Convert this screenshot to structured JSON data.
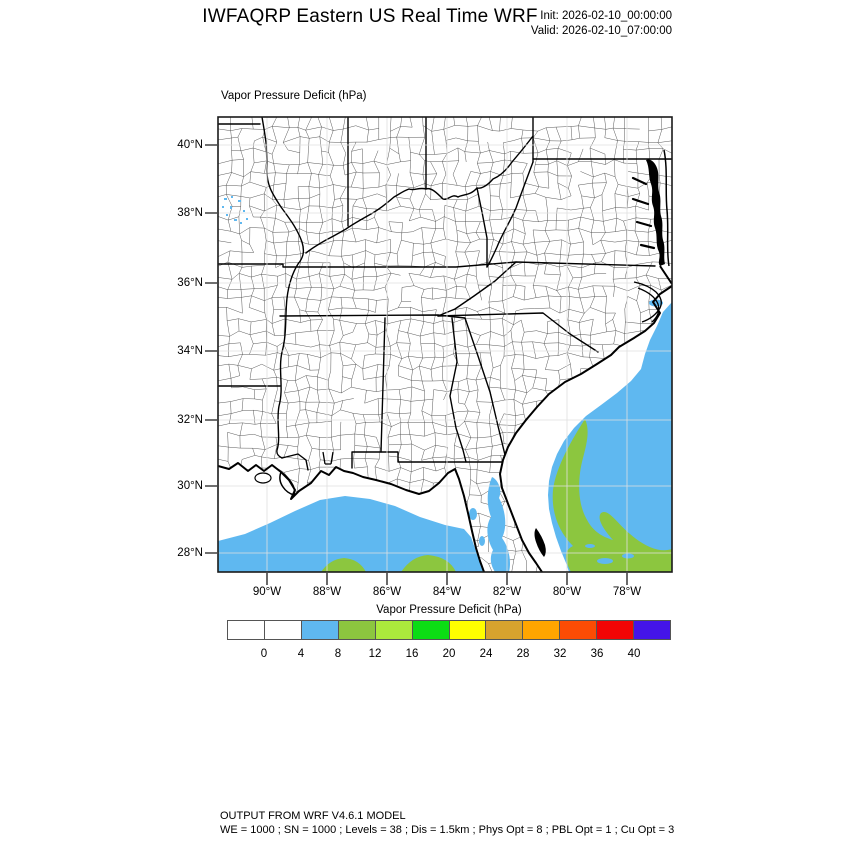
{
  "header": {
    "title": "IWFAQRP Eastern US Real Time WRF",
    "init": "Init: 2026-02-10_00:00:00",
    "valid": "Valid: 2026-02-10_07:00:00"
  },
  "map": {
    "field_title": "Vapor Pressure Deficit  (hPa)",
    "lat_labels": [
      "40°N",
      "38°N",
      "36°N",
      "34°N",
      "32°N",
      "30°N",
      "28°N"
    ],
    "lon_labels": [
      "90°W",
      "88°W",
      "86°W",
      "84°W",
      "82°W",
      "80°W",
      "78°W"
    ]
  },
  "colorbar": {
    "title": "Vapor Pressure Deficit  (hPa)",
    "tick_labels": [
      "0",
      "4",
      "8",
      "12",
      "16",
      "20",
      "24",
      "28",
      "32",
      "36",
      "40"
    ],
    "colors": [
      "#ffffff",
      "#ffffff",
      "#5fb8f0",
      "#8cc63f",
      "#abe93c",
      "#0cdd14",
      "#ffff00",
      "#d7a32e",
      "#ffa500",
      "#fb4c04",
      "#f20505",
      "#4414e8"
    ]
  },
  "map_colors": {
    "ocean_vpd_4_8_blue": "#5fb8f0",
    "ocean_vpd_8_12_green": "#8cc63f",
    "land_vpd_0_4_white": "#ffffff"
  },
  "footer": {
    "line1": "OUTPUT FROM WRF V4.6.1 MODEL",
    "line2": "WE = 1000 ; SN = 1000 ; Levels = 38 ; Dis = 1.5km ; Phys Opt = 8 ; PBL Opt = 1 ; Cu Opt = 3"
  },
  "chart_data": {
    "type": "heatmap",
    "title": "Vapor Pressure Deficit  (hPa)",
    "units": "hPa",
    "colorbar_levels": [
      0,
      4,
      8,
      12,
      16,
      20,
      24,
      28,
      32,
      36,
      40
    ],
    "lat_axis": [
      "28°N",
      "30°N",
      "32°N",
      "34°N",
      "36°N",
      "38°N",
      "40°N"
    ],
    "lon_axis": [
      "90°W",
      "88°W",
      "86°W",
      "84°W",
      "82°W",
      "80°W",
      "78°W"
    ],
    "regions": [
      {
        "area": "Eastern US land (most of domain)",
        "value_range_hPa": "0-4"
      },
      {
        "area": "Gulf of Mexico offshore",
        "value_range_hPa": "4-8"
      },
      {
        "area": "Atlantic offshore along SE coast",
        "value_range_hPa": "4-8"
      },
      {
        "area": "Gulf Stream band and SE corner of Atlantic",
        "value_range_hPa": "8-12"
      },
      {
        "area": "two small patches at southern edge of Gulf of Mexico",
        "value_range_hPa": "8-12"
      },
      {
        "area": "small inland patch over north-central Florida / south Georgia",
        "value_range_hPa": "4-8"
      },
      {
        "area": "scattered flecks in eastern Missouri near 38N",
        "value_range_hPa": "4-8"
      }
    ]
  }
}
